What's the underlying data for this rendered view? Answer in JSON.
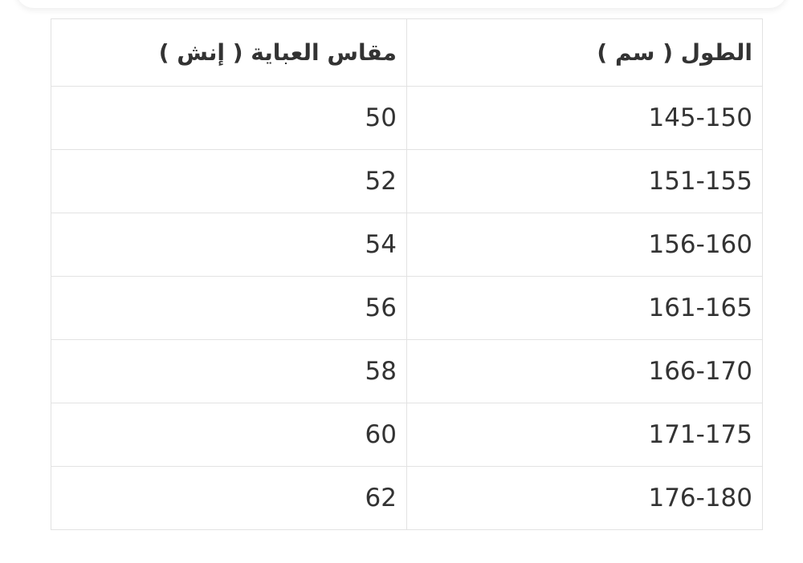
{
  "table": {
    "headers": [
      "الطول ( سم )",
      "مقاس العباية ( إنش )"
    ],
    "rows": [
      [
        "145-150",
        "50"
      ],
      [
        "151-155",
        "52"
      ],
      [
        "156-160",
        "54"
      ],
      [
        "161-165",
        "56"
      ],
      [
        "166-170",
        "58"
      ],
      [
        "171-175",
        "60"
      ],
      [
        "176-180",
        "62"
      ]
    ]
  }
}
